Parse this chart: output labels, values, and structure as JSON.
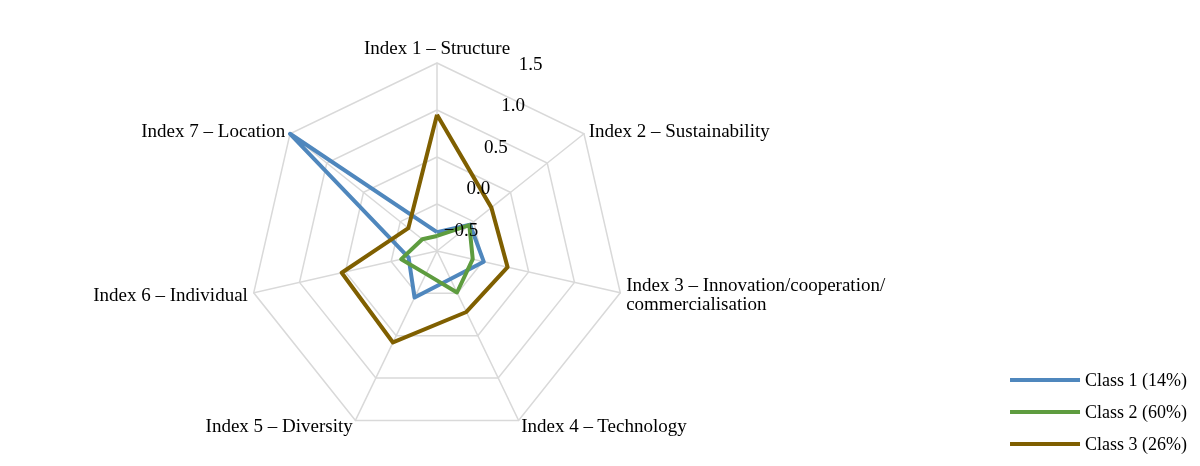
{
  "chart_data": {
    "type": "radar",
    "categories": [
      "Index 1 – Structure",
      "Index 2 – Sustainability",
      "Index 3 – Innovation/cooperation/ commercialisation",
      "Index 4 – Technology",
      "Index 5 – Diversity",
      "Index 6 – Individual",
      "Index 7 – Location"
    ],
    "ylim": [
      -0.5,
      1.5
    ],
    "yticks": [
      {
        "value": -0.5,
        "label": "−0.5"
      },
      {
        "value": 0,
        "label": "0.0"
      },
      {
        "value": 0.5,
        "label": "0.5"
      },
      {
        "value": 1,
        "label": "1.0"
      },
      {
        "value": 1.5,
        "label": "1.5"
      }
    ],
    "grid": true,
    "legend": "bottom right",
    "series": [
      {
        "name": "Class 1 (14%)",
        "color": "#4f87bd",
        "values": [
          -0.3,
          -0.05,
          0.01,
          -0.17,
          0.05,
          -0.19,
          1.5
        ]
      },
      {
        "name": "Class 2 (60%)",
        "color": "#5e9c3f",
        "values": [
          -0.34,
          -0.06,
          -0.11,
          -0.01,
          -0.23,
          -0.11,
          -0.3
        ]
      },
      {
        "name": "Class 3 (26%)",
        "color": "#7f5f00",
        "values": [
          0.95,
          0.24,
          0.27,
          0.22,
          0.58,
          0.54,
          -0.11
        ]
      }
    ]
  }
}
